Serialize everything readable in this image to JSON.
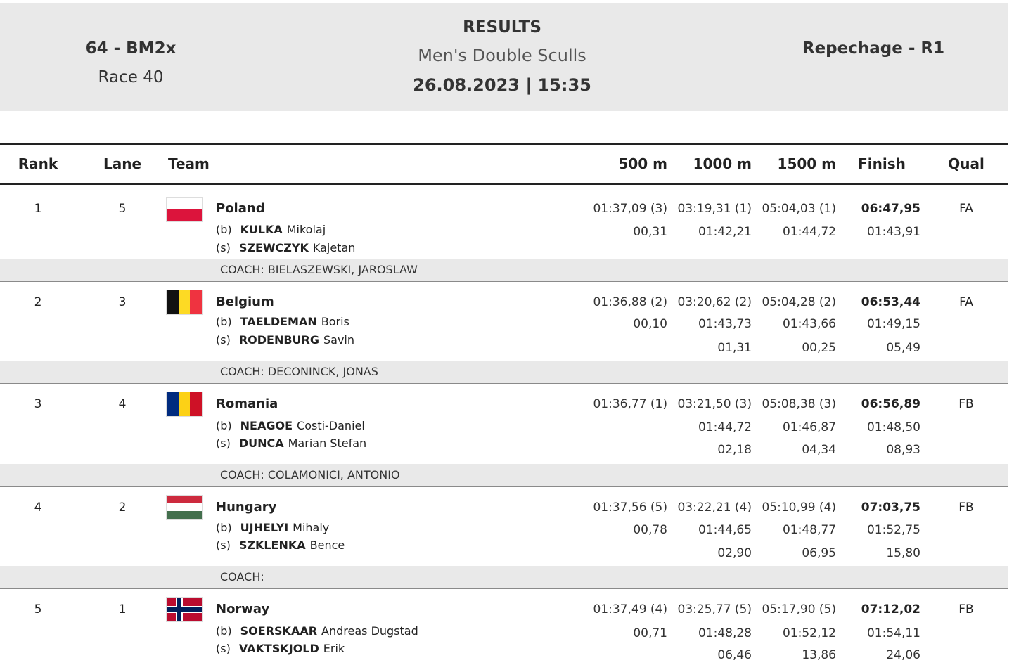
{
  "header": {
    "event_code": "64 - BM2x",
    "race": "Race 40",
    "title": "RESULTS",
    "subtitle": "Men's Double Sculls",
    "datetime": "26.08.2023 | 15:35",
    "phase": "Repechage - R1"
  },
  "columns": {
    "rank": "Rank",
    "lane": "Lane",
    "team": "Team",
    "m500": "500 m",
    "m1000": "1000 m",
    "m1500": "1500 m",
    "finish": "Finish",
    "qual": "Qual"
  },
  "rows": [
    {
      "rank": "1",
      "lane": "5",
      "country": "Poland",
      "flag": "poland-flag-icon",
      "athletes": [
        {
          "pos": "(b)",
          "surname": "KULKA",
          "given": "Mikolaj"
        },
        {
          "pos": "(s)",
          "surname": "SZEWCZYK",
          "given": "Kajetan"
        }
      ],
      "t500": "01:37,09 (3)",
      "t1000": "03:19,31 (1)",
      "t1500": "05:04,03 (1)",
      "finish": "06:47,95",
      "s500": "00,31",
      "s1000": "01:42,21",
      "s1500": "01:44,72",
      "sfinish": "01:43,91",
      "d1000": "",
      "d1500": "",
      "dfinish": "",
      "qual": "FA",
      "coach": "COACH: BIELASZEWSKI, JAROSLAW"
    },
    {
      "rank": "2",
      "lane": "3",
      "country": "Belgium",
      "flag": "belgium-flag-icon",
      "athletes": [
        {
          "pos": "(b)",
          "surname": "TAELDEMAN",
          "given": "Boris"
        },
        {
          "pos": "(s)",
          "surname": "RODENBURG",
          "given": "Savin"
        }
      ],
      "t500": "01:36,88 (2)",
      "t1000": "03:20,62 (2)",
      "t1500": "05:04,28 (2)",
      "finish": "06:53,44",
      "s500": "00,10",
      "s1000": "01:43,73",
      "s1500": "01:43,66",
      "sfinish": "01:49,15",
      "d1000": "01,31",
      "d1500": "00,25",
      "dfinish": "05,49",
      "qual": "FA",
      "coach": "COACH: DECONINCK, JONAS"
    },
    {
      "rank": "3",
      "lane": "4",
      "country": "Romania",
      "flag": "romania-flag-icon",
      "athletes": [
        {
          "pos": "(b)",
          "surname": "NEAGOE",
          "given": "Costi-Daniel"
        },
        {
          "pos": "(s)",
          "surname": "DUNCA",
          "given": "Marian Stefan"
        }
      ],
      "t500": "01:36,77 (1)",
      "t1000": "03:21,50 (3)",
      "t1500": "05:08,38 (3)",
      "finish": "06:56,89",
      "s500": "",
      "s1000": "01:44,72",
      "s1500": "01:46,87",
      "sfinish": "01:48,50",
      "d1000": "02,18",
      "d1500": "04,34",
      "dfinish": "08,93",
      "qual": "FB",
      "coach": "COACH: COLAMONICI, ANTONIO"
    },
    {
      "rank": "4",
      "lane": "2",
      "country": "Hungary",
      "flag": "hungary-flag-icon",
      "athletes": [
        {
          "pos": "(b)",
          "surname": "UJHELYI",
          "given": "Mihaly"
        },
        {
          "pos": "(s)",
          "surname": "SZKLENKA",
          "given": "Bence"
        }
      ],
      "t500": "01:37,56 (5)",
      "t1000": "03:22,21 (4)",
      "t1500": "05:10,99 (4)",
      "finish": "07:03,75",
      "s500": "00,78",
      "s1000": "01:44,65",
      "s1500": "01:48,77",
      "sfinish": "01:52,75",
      "d1000": "02,90",
      "d1500": "06,95",
      "dfinish": "15,80",
      "qual": "FB",
      "coach": "COACH:"
    },
    {
      "rank": "5",
      "lane": "1",
      "country": "Norway",
      "flag": "norway-flag-icon",
      "athletes": [
        {
          "pos": "(b)",
          "surname": "SOERSKAAR",
          "given": "Andreas Dugstad"
        },
        {
          "pos": "(s)",
          "surname": "VAKTSKJOLD",
          "given": "Erik"
        }
      ],
      "t500": "01:37,49 (4)",
      "t1000": "03:25,77 (5)",
      "t1500": "05:17,90 (5)",
      "finish": "07:12,02",
      "s500": "00,71",
      "s1000": "01:48,28",
      "s1500": "01:52,12",
      "sfinish": "01:54,11",
      "d1000": "06,46",
      "d1500": "13,86",
      "dfinish": "24,06",
      "qual": "FB",
      "coach": ""
    }
  ]
}
